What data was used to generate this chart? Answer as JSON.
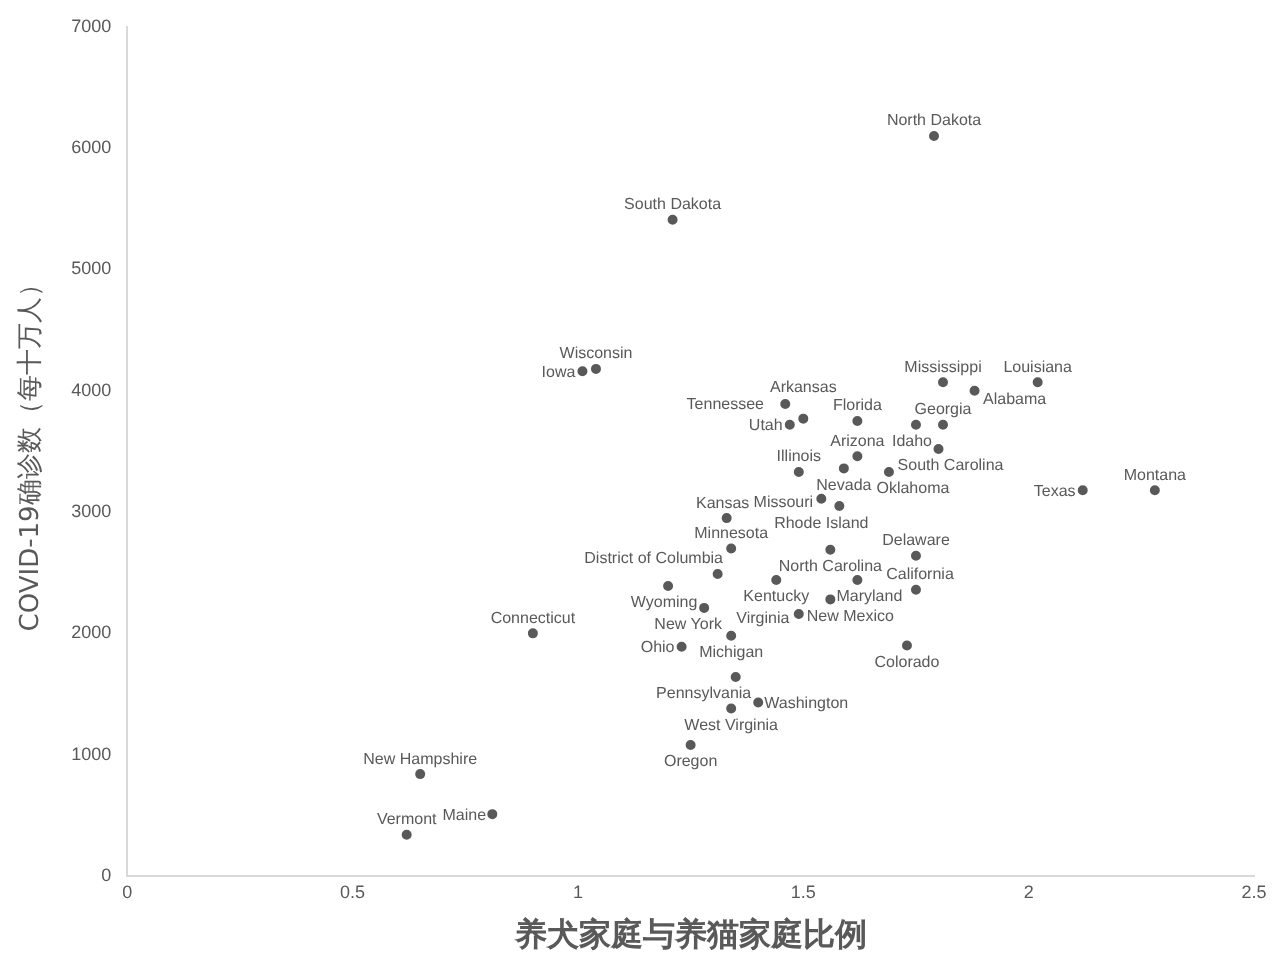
{
  "chart_data": {
    "type": "scatter",
    "xlabel": "养犬家庭与养猫家庭比例",
    "ylabel": "COVID-19确诊数（每十万人）",
    "xlim": [
      0,
      2.5
    ],
    "xticks": [
      0,
      0.5,
      1,
      1.5,
      2,
      2.5
    ],
    "ylim": [
      0,
      7000
    ],
    "yticks": [
      0,
      1000,
      2000,
      3000,
      4000,
      5000,
      6000,
      7000
    ],
    "grid": false,
    "legend": false,
    "marker": "circle",
    "series": [
      {
        "color": "#595959",
        "x": [
          1.79,
          1.21,
          1.04,
          1.01,
          1.88,
          1.81,
          2.02,
          1.46,
          1.5,
          1.47,
          1.62,
          1.81,
          1.75,
          1.62,
          1.69,
          1.8,
          1.59,
          1.49,
          1.54,
          1.58,
          2.12,
          2.28,
          1.33,
          1.34,
          1.56,
          1.75,
          1.31,
          1.44,
          1.62,
          1.2,
          1.75,
          1.56,
          1.28,
          1.49,
          0.9,
          1.34,
          1.23,
          1.73,
          1.35,
          1.34,
          1.4,
          1.25,
          0.65,
          0.81,
          0.62
        ],
        "values": [
          6100,
          5410,
          4180,
          4160,
          4000,
          4070,
          4070,
          3890,
          3770,
          3720,
          3750,
          3720,
          3720,
          3460,
          3330,
          3520,
          3360,
          3330,
          3110,
          3050,
          3180,
          3180,
          2950,
          2700,
          2690,
          2640,
          2490,
          2440,
          2440,
          2390,
          2360,
          2280,
          2210,
          2160,
          2000,
          1980,
          1890,
          1900,
          1640,
          1380,
          1430,
          1080,
          840,
          510,
          340
        ],
        "value_labels": [
          "North Dakota",
          "South Dakota",
          "Wisconsin",
          "Iowa",
          "Alabama",
          "Mississippi",
          "Louisiana",
          "Tennessee",
          "Arkansas",
          "Utah",
          "Florida",
          "Georgia",
          "Idaho",
          "Arizona",
          "Oklahoma",
          "South Carolina",
          "Nevada",
          "Illinois",
          "Rhode Island",
          "Missouri",
          "Texas",
          "Montana",
          "Kansas",
          "Minnesota",
          "North Carolina",
          "Delaware",
          "District of Columbia",
          "Kentucky",
          "Maryland",
          "Wyoming",
          "California",
          "New Mexico",
          "New York",
          "Virginia",
          "Connecticut",
          "Michigan",
          "Ohio",
          "Colorado",
          "Pennsylvania",
          "West Virginia",
          "Washington",
          "Oregon",
          "New Hampshire",
          "Maine",
          "Vermont"
        ]
      }
    ]
  }
}
